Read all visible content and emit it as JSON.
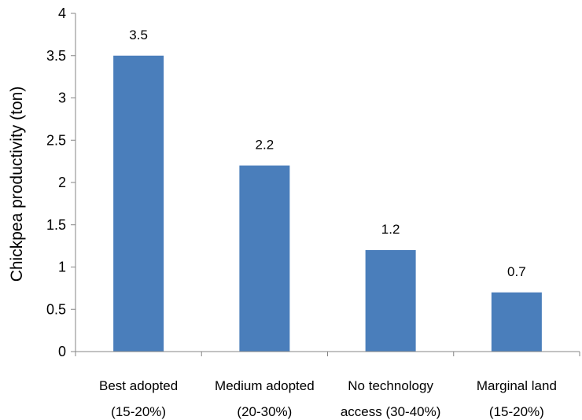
{
  "chart_data": {
    "type": "bar",
    "categories": [
      [
        "Best adopted",
        "(15-20%)"
      ],
      [
        "Medium adopted",
        "(20-30%)"
      ],
      [
        "No technology",
        "access (30-40%)"
      ],
      [
        "Marginal land",
        "(15-20%)"
      ]
    ],
    "values": [
      3.5,
      2.2,
      1.2,
      0.7
    ],
    "data_labels": [
      "3.5",
      "2.2",
      "1.2",
      "0.7"
    ],
    "title": "",
    "xlabel": "",
    "ylabel": "Chickpea productivity (ton)",
    "ylim": [
      0,
      4
    ],
    "yticks": [
      "0",
      "0.5",
      "1",
      "1.5",
      "2",
      "2.5",
      "3",
      "3.5",
      "4"
    ],
    "grid": false,
    "legend": "none",
    "bar_color": "#4a7ebb",
    "axis_color": "#868686"
  }
}
